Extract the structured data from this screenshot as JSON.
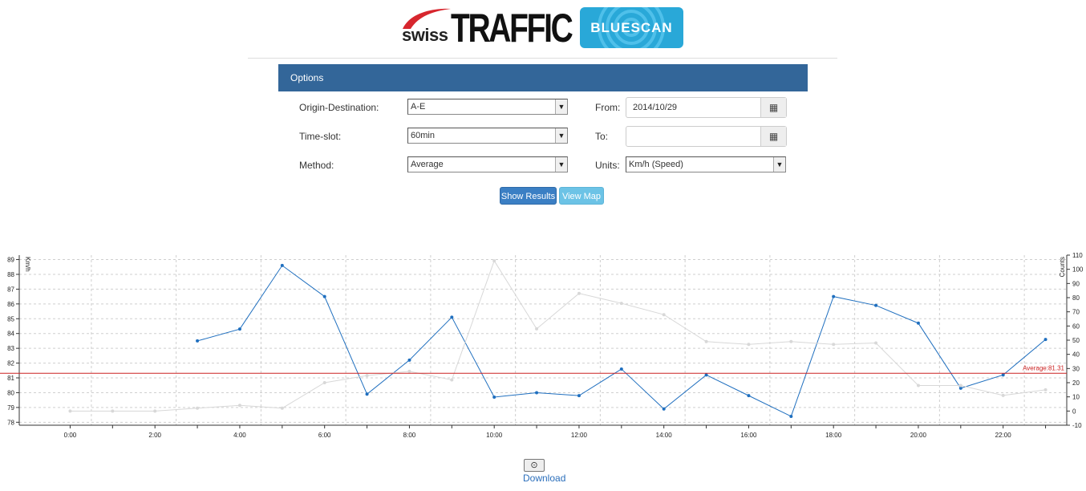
{
  "header": {
    "logo_swiss": "swiss",
    "logo_traffic": "TRAFFIC",
    "logo_bluescan": "BLUESCAN"
  },
  "options": {
    "title": "Options",
    "origin_label": "Origin-Destination:",
    "origin_value": "A-E",
    "timeslot_label": "Time-slot:",
    "timeslot_value": "60min",
    "method_label": "Method:",
    "method_value": "Average",
    "from_label": "From:",
    "from_value": "2014/10/29",
    "to_label": "To:",
    "to_value": "",
    "units_label": "Units:",
    "units_value": "Km/h (Speed)",
    "calendar_icon": "calendar-icon",
    "dropdown_icon": "chevron-down-icon"
  },
  "buttons": {
    "show_results": "Show Results",
    "view_map": "View Map"
  },
  "download": {
    "icon": "download-icon",
    "label": "Download"
  },
  "chart_data": {
    "type": "line",
    "ylabel": "Km/h",
    "y2label": "Counts",
    "ylim": [
      77.8,
      89.3
    ],
    "y2lim": [
      -10,
      110
    ],
    "yticks": [
      78,
      79,
      80,
      81,
      82,
      83,
      84,
      85,
      86,
      87,
      88,
      89
    ],
    "y2ticks": [
      -10,
      0,
      10,
      20,
      30,
      40,
      50,
      60,
      70,
      80,
      90,
      100,
      110
    ],
    "xlim": [
      0,
      23.5
    ],
    "xticks": [
      0,
      2,
      4,
      6,
      8,
      10,
      12,
      14,
      16,
      18,
      20,
      22
    ],
    "xtick_labels": [
      "0:00",
      "2:00",
      "4:00",
      "6:00",
      "8:00",
      "10:00",
      "12:00",
      "14:00",
      "16:00",
      "18:00",
      "20:00",
      "22:00"
    ],
    "grid": true,
    "average": {
      "value": 81.31,
      "label": "Average:81.31",
      "color": "#cc2222"
    },
    "series": [
      {
        "axis": "left",
        "color": "#1f6fbf",
        "x": [
          3,
          4,
          5,
          6,
          7,
          8,
          9,
          10,
          11,
          12,
          13,
          14,
          15,
          16,
          17,
          18,
          19,
          20,
          21,
          22,
          23
        ],
        "values": [
          83.5,
          84.3,
          88.6,
          86.5,
          79.9,
          82.2,
          85.1,
          79.7,
          80.0,
          79.8,
          81.6,
          78.9,
          81.2,
          79.8,
          78.4,
          86.5,
          85.9,
          84.7,
          80.3,
          81.2,
          83.6
        ]
      },
      {
        "axis": "right",
        "color": "#d8d8d8",
        "x": [
          0,
          1,
          2,
          3,
          4,
          5,
          6,
          7,
          8,
          9,
          10,
          11,
          12,
          13,
          14,
          15,
          16,
          17,
          18,
          19,
          20,
          21,
          22,
          23
        ],
        "values": [
          0,
          0,
          0,
          2,
          4,
          2,
          20,
          25,
          28,
          22,
          106,
          58,
          83,
          76,
          68,
          49,
          47,
          49,
          47,
          48,
          18,
          18,
          11,
          15
        ]
      }
    ]
  }
}
